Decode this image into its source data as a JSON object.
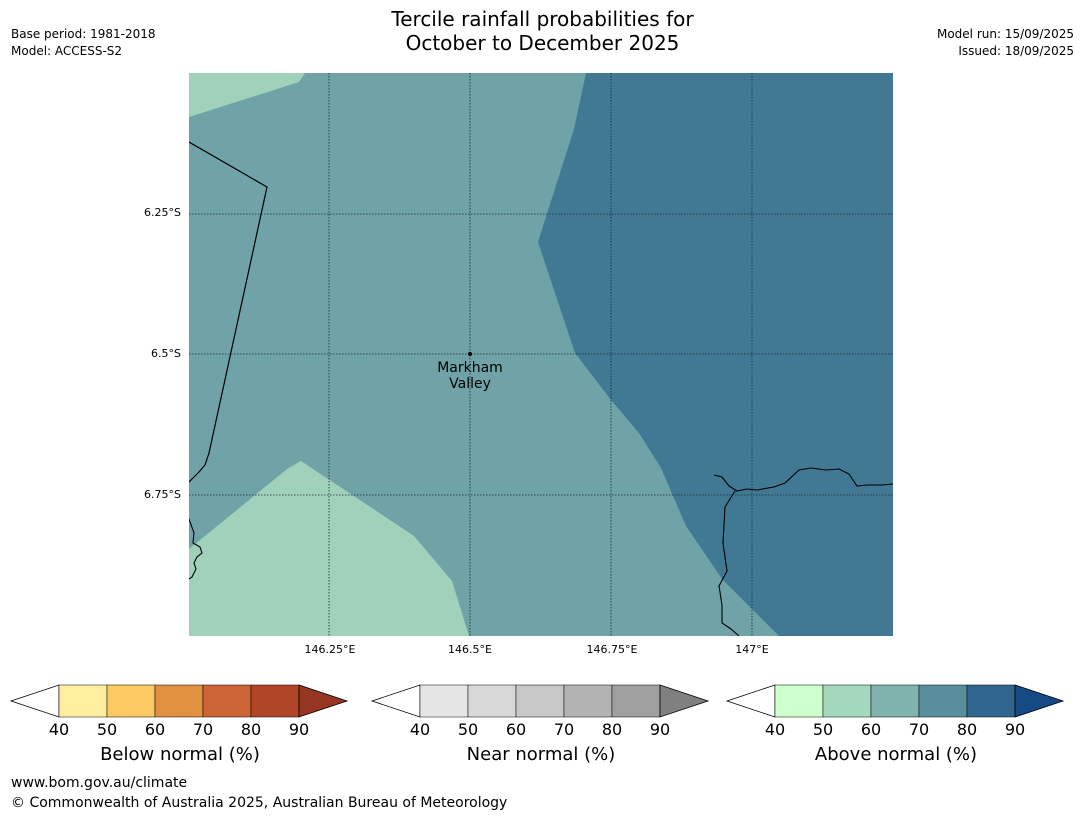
{
  "header": {
    "title_line1": "Tercile rainfall probabilities for",
    "title_line2": "October to December 2025",
    "base_period": "Base period: 1981-2018",
    "model": "Model: ACCESS-S2",
    "model_run": "Model run: 15/09/2025",
    "issued": "Issued: 18/09/2025"
  },
  "map": {
    "lat_labels": [
      "6.25°S",
      "6.5°S",
      "6.75°S"
    ],
    "lon_labels": [
      "146.25°E",
      "146.5°E",
      "146.75°E",
      "147°E"
    ],
    "place": {
      "line1": "Markham",
      "line2": "Valley"
    },
    "colors": {
      "above_50_60": "#a0d2bb",
      "above_60_70": "#6fa3a7",
      "above_70_80": "#417995"
    }
  },
  "legends": [
    {
      "name": "below",
      "label": "Below normal (%)",
      "ticks": [
        "40",
        "50",
        "60",
        "70",
        "80",
        "90"
      ],
      "colors": [
        "#ffeda0",
        "#fec962",
        "#e19040",
        "#cc6435",
        "#b04627",
        "#963522"
      ]
    },
    {
      "name": "near",
      "label": "Near normal (%)",
      "ticks": [
        "40",
        "50",
        "60",
        "70",
        "80",
        "90"
      ],
      "colors": [
        "#e5e5e5",
        "#d8d8d8",
        "#c8c8c8",
        "#b3b3b3",
        "#9f9f9f",
        "#808080"
      ]
    },
    {
      "name": "above",
      "label": "Above normal (%)",
      "ticks": [
        "40",
        "50",
        "60",
        "70",
        "80",
        "90"
      ],
      "colors": [
        "#ccffcc",
        "#a3d8bd",
        "#80b3ad",
        "#578f9f",
        "#30658f",
        "#164a85"
      ]
    }
  ],
  "footer": {
    "url": "www.bom.gov.au/climate",
    "copyright": "© Commonwealth of Australia 2025, Australian Bureau of Meteorology"
  }
}
